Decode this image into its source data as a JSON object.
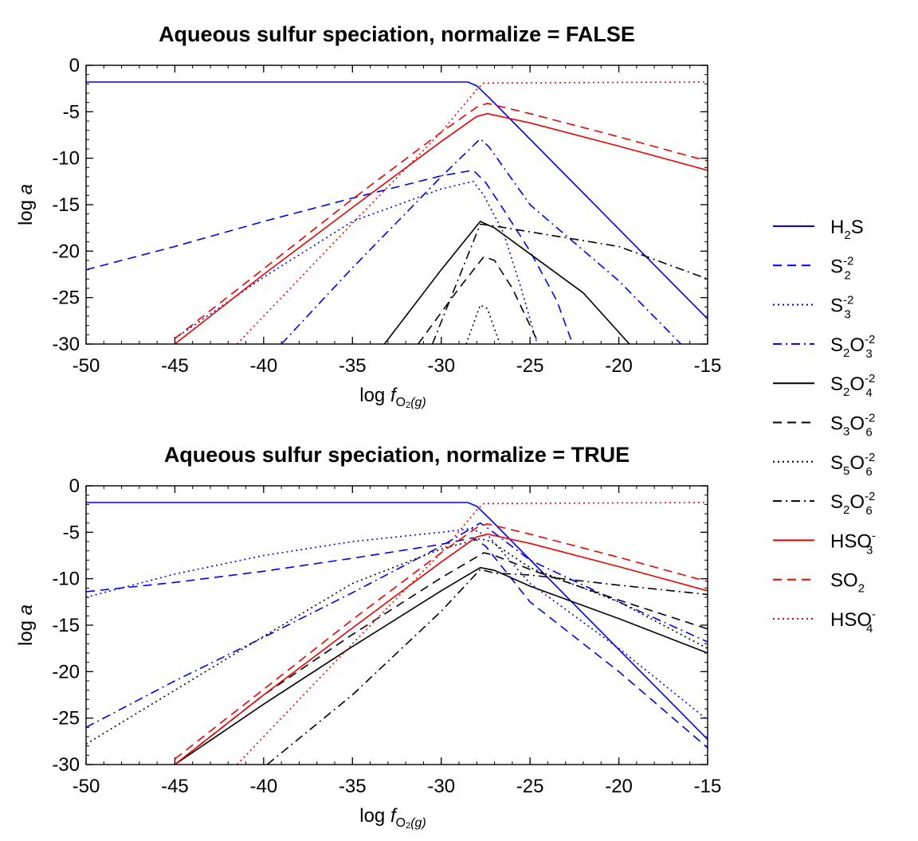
{
  "legend": {
    "placement": "right",
    "entries": [
      {
        "id": "h2s",
        "label": "H2S",
        "base": "H",
        "sub": "2",
        "rest": "S",
        "color": "#0000ee",
        "dash": "solid"
      },
      {
        "id": "s2",
        "label": "S2-2",
        "base": "S",
        "sub": "2",
        "sup": "-2",
        "color": "#0000ee",
        "dash": "dashed"
      },
      {
        "id": "s3",
        "label": "S3-2",
        "base": "S",
        "sub": "3",
        "sup": "-2",
        "color": "#0000ee",
        "dash": "dotted"
      },
      {
        "id": "s2o3",
        "label": "S2O3-2",
        "base": "S",
        "sub": "2",
        "mid": "O",
        "sub2": "3",
        "sup": "-2",
        "color": "#0000ee",
        "dash": "dashdot"
      },
      {
        "id": "s2o4",
        "label": "S2O4-2",
        "base": "S",
        "sub": "2",
        "mid": "O",
        "sub2": "4",
        "sup": "-2",
        "color": "#000000",
        "dash": "solid"
      },
      {
        "id": "s3o6",
        "label": "S3O6-2",
        "base": "S",
        "sub": "3",
        "mid": "O",
        "sub2": "6",
        "sup": "-2",
        "color": "#000000",
        "dash": "dashed"
      },
      {
        "id": "s5o6",
        "label": "S5O6-2",
        "base": "S",
        "sub": "5",
        "mid": "O",
        "sub2": "6",
        "sup": "-2",
        "color": "#000000",
        "dash": "dotted"
      },
      {
        "id": "s2o6",
        "label": "S2O6-2",
        "base": "S",
        "sub": "2",
        "mid": "O",
        "sub2": "6",
        "sup": "-2",
        "color": "#000000",
        "dash": "dashdot"
      },
      {
        "id": "hso3",
        "label": "HSO3-",
        "base": "HSO",
        "sub": "3",
        "sup": "-",
        "color": "#ee0000",
        "dash": "solid"
      },
      {
        "id": "so2",
        "label": "SO2",
        "base": "SO",
        "sub": "2",
        "color": "#ee0000",
        "dash": "dashed"
      },
      {
        "id": "hso4",
        "label": "HSO4-",
        "base": "HSO",
        "sub": "4",
        "sup": "-",
        "color": "#ee0000",
        "dash": "dotted"
      }
    ]
  },
  "chart_data": [
    {
      "type": "line",
      "title": "Aqueous sulfur speciation, normalize = FALSE",
      "xlabel": "log f O2(g)",
      "xlabel_parts": {
        "prefix": "log ",
        "f": "f",
        "sub": "O",
        "sub2": "2",
        "paren": "(g)"
      },
      "ylabel": "log a",
      "xlim": [
        -50,
        -15
      ],
      "ylim": [
        -30,
        0
      ],
      "xticks": [
        -50,
        -45,
        -40,
        -35,
        -30,
        -25,
        -20,
        -15
      ],
      "yticks": [
        0,
        -5,
        -10,
        -15,
        -20,
        -25,
        -30
      ],
      "grid": false,
      "series": [
        {
          "id": "h2s",
          "name": "H2S",
          "points": [
            [
              -50,
              -1.8
            ],
            [
              -28.5,
              -1.8
            ],
            [
              -28,
              -2.2
            ],
            [
              -27.3,
              -3.5
            ],
            [
              -15,
              -27.3
            ]
          ]
        },
        {
          "id": "s2",
          "name": "S2-2",
          "points": [
            [
              -50,
              -22
            ],
            [
              -45,
              -19.5
            ],
            [
              -40,
              -16.8
            ],
            [
              -35,
              -14.3
            ],
            [
              -30,
              -11.9
            ],
            [
              -28.2,
              -11.3
            ],
            [
              -27.5,
              -12.6
            ],
            [
              -26.5,
              -15.5
            ],
            [
              -25,
              -20
            ],
            [
              -23.5,
              -25.3
            ],
            [
              -22.6,
              -30
            ]
          ]
        },
        {
          "id": "s3",
          "name": "S3-2",
          "points": [
            [
              -45,
              -29.4
            ],
            [
              -40,
              -22.8
            ],
            [
              -35,
              -16.8
            ],
            [
              -30,
              -13.3
            ],
            [
              -28.2,
              -12.5
            ],
            [
              -27.6,
              -14
            ],
            [
              -26.5,
              -18
            ],
            [
              -25.5,
              -24
            ],
            [
              -24.6,
              -30
            ]
          ]
        },
        {
          "id": "s2o3",
          "name": "S2O3-2",
          "points": [
            [
              -39,
              -30
            ],
            [
              -35,
              -21.8
            ],
            [
              -30,
              -12
            ],
            [
              -27.8,
              -7.9
            ],
            [
              -27.3,
              -8.8
            ],
            [
              -25,
              -15
            ],
            [
              -20,
              -23.2
            ],
            [
              -16.5,
              -30
            ]
          ]
        },
        {
          "id": "s2o4",
          "name": "S2O4-2",
          "points": [
            [
              -33.2,
              -30
            ],
            [
              -30,
              -22
            ],
            [
              -27.8,
              -16.8
            ],
            [
              -27,
              -17.5
            ],
            [
              -25,
              -20.3
            ],
            [
              -22,
              -24.5
            ],
            [
              -19.4,
              -30
            ]
          ]
        },
        {
          "id": "s3o6",
          "name": "S3O6-2",
          "points": [
            [
              -31.3,
              -30
            ],
            [
              -29,
              -24
            ],
            [
              -27.6,
              -20.6
            ],
            [
              -27,
              -21
            ],
            [
              -26,
              -24
            ],
            [
              -24.5,
              -30
            ]
          ]
        },
        {
          "id": "s5o6",
          "name": "S5O6-2",
          "points": [
            [
              -28.6,
              -30
            ],
            [
              -27.8,
              -25.8
            ],
            [
              -27.4,
              -26.2
            ],
            [
              -26.7,
              -30
            ]
          ]
        },
        {
          "id": "s2o6",
          "name": "S2O6-2",
          "points": [
            [
              -30.5,
              -30
            ],
            [
              -27.8,
              -17.1
            ],
            [
              -27,
              -17.3
            ],
            [
              -20,
              -19.5
            ],
            [
              -15,
              -23
            ]
          ]
        },
        {
          "id": "hso3",
          "name": "HSO3-",
          "points": [
            [
              -45,
              -30
            ],
            [
              -40,
              -22.5
            ],
            [
              -35,
              -15.3
            ],
            [
              -30,
              -8.2
            ],
            [
              -28,
              -5.5
            ],
            [
              -27.4,
              -5.2
            ],
            [
              -25,
              -6.2
            ],
            [
              -20,
              -8.7
            ],
            [
              -15,
              -11.3
            ]
          ]
        },
        {
          "id": "so2",
          "name": "SO2",
          "points": [
            [
              -45,
              -29.4
            ],
            [
              -40,
              -21.9
            ],
            [
              -35,
              -14.4
            ],
            [
              -30,
              -7.2
            ],
            [
              -28,
              -4.5
            ],
            [
              -27.4,
              -4.1
            ],
            [
              -25,
              -5.2
            ],
            [
              -20,
              -7.7
            ],
            [
              -15,
              -10.3
            ]
          ]
        },
        {
          "id": "hso4",
          "name": "HSO4-",
          "points": [
            [
              -41.5,
              -30
            ],
            [
              -35,
              -17
            ],
            [
              -30,
              -7.2
            ],
            [
              -28,
              -2.6
            ],
            [
              -27.6,
              -1.9
            ],
            [
              -15,
              -1.8
            ]
          ]
        }
      ]
    },
    {
      "type": "line",
      "title": "Aqueous sulfur speciation, normalize = TRUE",
      "xlabel": "log f O2(g)",
      "xlabel_parts": {
        "prefix": "log ",
        "f": "f",
        "sub": "O",
        "sub2": "2",
        "paren": "(g)"
      },
      "ylabel": "log a",
      "xlim": [
        -50,
        -15
      ],
      "ylim": [
        -30,
        0
      ],
      "xticks": [
        -50,
        -45,
        -40,
        -35,
        -30,
        -25,
        -20,
        -15
      ],
      "yticks": [
        0,
        -5,
        -10,
        -15,
        -20,
        -25,
        -30
      ],
      "grid": false,
      "series": [
        {
          "id": "h2s",
          "name": "H2S",
          "points": [
            [
              -50,
              -1.8
            ],
            [
              -28.5,
              -1.8
            ],
            [
              -28,
              -2.2
            ],
            [
              -27.3,
              -3.5
            ],
            [
              -15,
              -27.3
            ]
          ]
        },
        {
          "id": "s2",
          "name": "S2-2",
          "points": [
            [
              -50,
              -11.4
            ],
            [
              -45,
              -10.4
            ],
            [
              -40,
              -9.2
            ],
            [
              -35,
              -7.8
            ],
            [
              -30,
              -6.3
            ],
            [
              -28.2,
              -5.6
            ],
            [
              -27.5,
              -6.5
            ],
            [
              -25,
              -12.5
            ],
            [
              -20,
              -20
            ],
            [
              -15,
              -28.2
            ]
          ]
        },
        {
          "id": "s3",
          "name": "S3-2",
          "points": [
            [
              -50,
              -12
            ],
            [
              -45,
              -9.5
            ],
            [
              -40,
              -7.5
            ],
            [
              -35,
              -6
            ],
            [
              -30,
              -5
            ],
            [
              -28.3,
              -4.6
            ],
            [
              -27.3,
              -5.5
            ],
            [
              -25,
              -10.5
            ],
            [
              -20,
              -17.5
            ],
            [
              -15,
              -25.2
            ]
          ]
        },
        {
          "id": "s2o3",
          "name": "S2O3-2",
          "points": [
            [
              -50,
              -26
            ],
            [
              -45,
              -21
            ],
            [
              -40,
              -16.3
            ],
            [
              -35,
              -11.5
            ],
            [
              -30,
              -6.5
            ],
            [
              -27.8,
              -4
            ],
            [
              -27.2,
              -4.8
            ],
            [
              -25,
              -8
            ],
            [
              -20,
              -12.5
            ],
            [
              -15,
              -16.8
            ]
          ]
        },
        {
          "id": "s2o4",
          "name": "S2O4-2",
          "points": [
            [
              -45,
              -30
            ],
            [
              -40,
              -23.5
            ],
            [
              -35,
              -17.3
            ],
            [
              -30,
              -11.3
            ],
            [
              -27.8,
              -8.8
            ],
            [
              -27,
              -9.1
            ],
            [
              -25,
              -10.8
            ],
            [
              -20,
              -14.3
            ],
            [
              -15,
              -18
            ]
          ]
        },
        {
          "id": "s3o6",
          "name": "S3O6-2",
          "points": [
            [
              -45,
              -30
            ],
            [
              -40,
              -22.5
            ],
            [
              -35,
              -16
            ],
            [
              -30,
              -9.9
            ],
            [
              -27.6,
              -7.2
            ],
            [
              -27,
              -7.5
            ],
            [
              -25,
              -9
            ],
            [
              -20,
              -12.3
            ],
            [
              -15,
              -15.4
            ]
          ]
        },
        {
          "id": "s5o6",
          "name": "S5O6-2",
          "points": [
            [
              -50,
              -27.8
            ],
            [
              -45,
              -22
            ],
            [
              -40,
              -16.2
            ],
            [
              -35,
              -10.5
            ],
            [
              -30,
              -6.8
            ],
            [
              -27.8,
              -5.7
            ],
            [
              -27.2,
              -6
            ],
            [
              -25,
              -8.8
            ],
            [
              -20,
              -12.5
            ],
            [
              -15,
              -17.5
            ]
          ]
        },
        {
          "id": "s2o6",
          "name": "S2O6-2",
          "points": [
            [
              -39.8,
              -30
            ],
            [
              -35,
              -22.5
            ],
            [
              -30,
              -13.5
            ],
            [
              -27.8,
              -9
            ],
            [
              -27,
              -9.4
            ],
            [
              -25,
              -9.6
            ],
            [
              -20,
              -10.7
            ],
            [
              -15,
              -11.7
            ]
          ]
        },
        {
          "id": "hso3",
          "name": "HSO3-",
          "points": [
            [
              -45,
              -30
            ],
            [
              -40,
              -22.5
            ],
            [
              -35,
              -15.3
            ],
            [
              -30,
              -8.2
            ],
            [
              -28,
              -5.5
            ],
            [
              -27.4,
              -5.2
            ],
            [
              -25,
              -6.2
            ],
            [
              -20,
              -8.7
            ],
            [
              -15,
              -11.3
            ]
          ]
        },
        {
          "id": "so2",
          "name": "SO2",
          "points": [
            [
              -45,
              -29.4
            ],
            [
              -40,
              -21.9
            ],
            [
              -35,
              -14.4
            ],
            [
              -30,
              -7.2
            ],
            [
              -28,
              -4.5
            ],
            [
              -27.4,
              -4.1
            ],
            [
              -25,
              -5.2
            ],
            [
              -20,
              -7.7
            ],
            [
              -15,
              -10.3
            ]
          ]
        },
        {
          "id": "hso4",
          "name": "HSO4-",
          "points": [
            [
              -41.5,
              -30
            ],
            [
              -35,
              -17
            ],
            [
              -30,
              -7.2
            ],
            [
              -28,
              -2.6
            ],
            [
              -27.6,
              -1.9
            ],
            [
              -15,
              -1.8
            ]
          ]
        }
      ]
    }
  ]
}
